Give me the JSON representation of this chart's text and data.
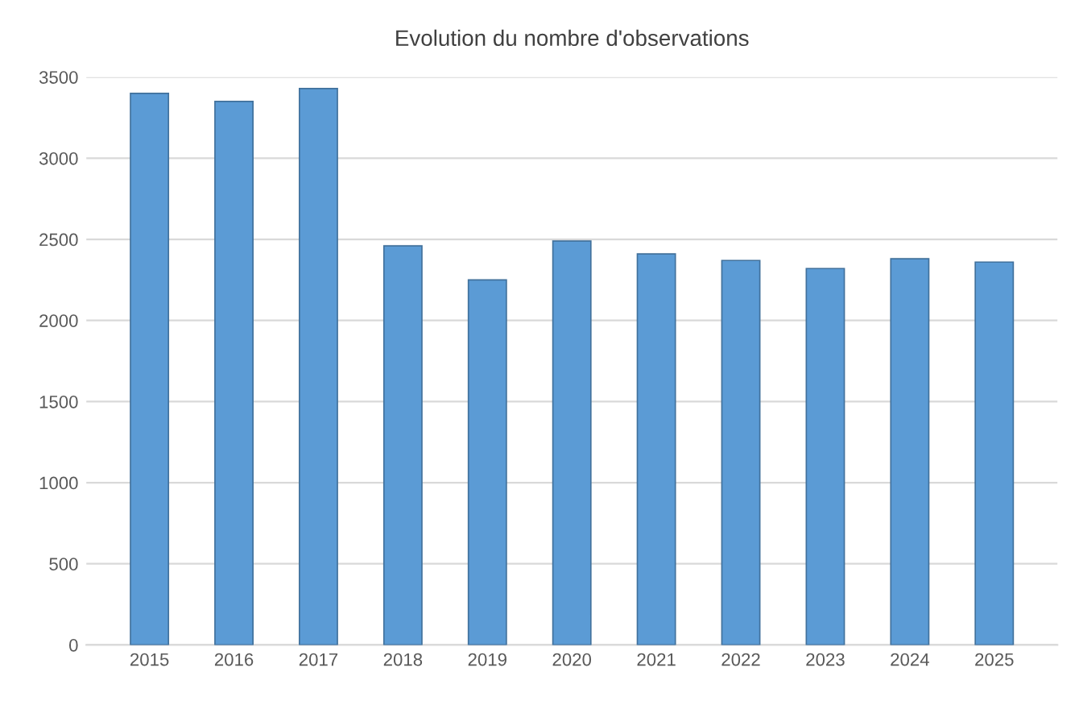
{
  "chart_data": {
    "type": "bar",
    "title": "Evolution du nombre d'observations",
    "categories": [
      "2015",
      "2016",
      "2017",
      "2018",
      "2019",
      "2020",
      "2021",
      "2022",
      "2023",
      "2024",
      "2025"
    ],
    "values": [
      3400,
      3350,
      3430,
      2460,
      2250,
      2490,
      2410,
      2370,
      2320,
      2380,
      2360
    ],
    "color": "#5b9bd5",
    "ylim": [
      0,
      3500
    ],
    "yticks": [
      0,
      500,
      1000,
      1500,
      2000,
      2500,
      3000,
      3500
    ],
    "grid": "y"
  }
}
